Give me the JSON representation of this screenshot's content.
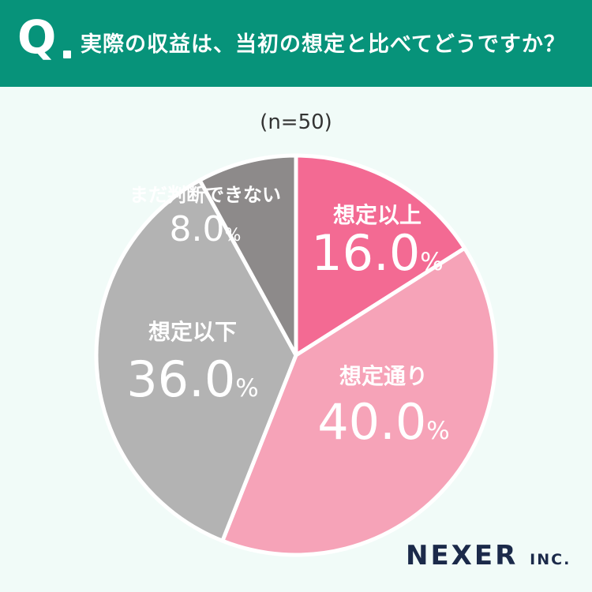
{
  "header": {
    "q_mark": "Q",
    "question": "実際の収益は、当初の想定と比べてどうですか？"
  },
  "sample_label": "(n=50)",
  "brand": {
    "name": "NEXER",
    "suffix": "INC."
  },
  "chart_data": {
    "type": "pie",
    "title": "実際の収益は、当初の想定と比べてどうですか？",
    "n": "n=50",
    "unit": "%",
    "slices": [
      {
        "label": "想定以上",
        "value": 16.0,
        "display": "16.0",
        "color": "#f36a93",
        "text_color": "#ffffff"
      },
      {
        "label": "想定通り",
        "value": 40.0,
        "display": "40.0",
        "color": "#f6a3b8",
        "text_color": "#ffffff"
      },
      {
        "label": "想定以下",
        "value": 36.0,
        "display": "36.0",
        "color": "#b3b3b3",
        "text_color": "#ffffff"
      },
      {
        "label": "まだ判断できない",
        "value": 8.0,
        "display": "8.0",
        "color": "#8d8a8a",
        "text_color": "#ffffff"
      }
    ]
  }
}
